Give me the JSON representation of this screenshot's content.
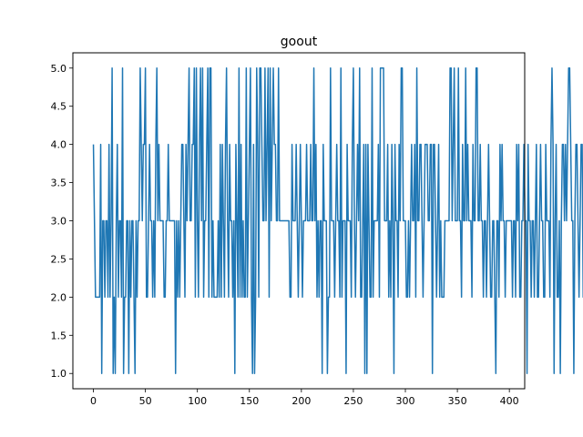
{
  "chart_data": {
    "type": "line",
    "title": "goout",
    "xlabel": "",
    "ylabel": "",
    "xlim": [
      -19.75,
      414.75
    ],
    "ylim": [
      0.8,
      5.2
    ],
    "xticks": [
      0,
      50,
      100,
      150,
      200,
      250,
      300,
      350,
      400
    ],
    "yticks": [
      1.0,
      1.5,
      2.0,
      2.5,
      3.0,
      3.5,
      4.0,
      4.5,
      5.0
    ],
    "ytick_labels": [
      "1.0",
      "1.5",
      "2.0",
      "2.5",
      "3.0",
      "3.5",
      "4.0",
      "4.5",
      "5.0"
    ],
    "grid": false,
    "series": [
      {
        "color": "#1f77b4",
        "values": [
          4,
          3,
          2,
          2,
          2,
          2,
          2,
          4,
          1,
          3,
          3,
          2,
          3,
          3,
          2,
          4,
          2,
          3,
          5,
          1,
          2,
          1,
          3,
          4,
          2,
          3,
          3,
          2,
          5,
          1,
          2,
          2,
          3,
          3,
          1,
          3,
          2,
          3,
          3,
          2,
          1,
          3,
          2,
          3,
          3,
          5,
          4,
          3,
          4,
          4,
          5,
          2,
          2,
          3,
          4,
          3,
          3,
          2,
          3,
          2,
          4,
          5,
          3,
          4,
          3,
          3,
          3,
          3,
          2,
          2,
          3,
          3,
          4,
          3,
          3,
          3,
          3,
          3,
          3,
          1,
          3,
          2,
          3,
          2,
          3,
          4,
          4,
          3,
          2,
          4,
          3,
          4,
          5,
          3,
          3,
          4,
          4,
          5,
          2,
          5,
          3,
          2,
          4,
          5,
          3,
          5,
          2,
          3,
          3,
          4,
          5,
          2,
          5,
          5,
          2,
          3,
          2,
          2,
          2,
          2,
          3,
          2,
          4,
          2,
          4,
          3,
          2,
          4,
          5,
          3,
          2,
          4,
          3,
          3,
          2,
          3,
          1,
          4,
          3,
          2,
          5,
          2,
          4,
          2,
          3,
          2,
          2,
          5,
          2,
          3,
          4,
          5,
          2,
          1,
          4,
          1,
          2,
          5,
          4,
          2,
          5,
          5,
          4,
          3,
          3,
          5,
          3,
          4,
          5,
          2,
          5,
          3,
          4,
          5,
          4,
          4,
          3,
          3,
          5,
          3,
          3,
          3,
          3,
          3,
          3,
          3,
          3,
          3,
          3,
          2,
          2,
          4,
          3,
          3,
          3,
          4,
          3,
          2,
          3,
          4,
          3,
          2,
          3,
          3,
          3,
          4,
          3,
          3,
          3,
          4,
          3,
          3,
          5,
          3,
          4,
          2,
          3,
          2,
          3,
          3,
          1,
          4,
          3,
          3,
          3,
          1,
          2,
          2,
          5,
          3,
          3,
          3,
          2,
          3,
          4,
          3,
          3,
          2,
          5,
          2,
          3,
          3,
          3,
          1,
          4,
          3,
          3,
          3,
          2,
          4,
          5,
          3,
          2,
          3,
          4,
          3,
          5,
          2,
          2,
          3,
          4,
          1,
          4,
          1,
          4,
          3,
          2,
          2,
          5,
          2,
          3,
          3,
          3,
          3,
          4,
          2,
          5,
          5,
          5,
          5,
          3,
          3,
          3,
          4,
          2,
          3,
          2,
          4,
          3,
          1,
          4,
          3,
          3,
          2,
          4,
          3,
          5,
          5,
          3,
          3,
          3,
          2,
          2,
          3,
          2,
          3,
          4,
          3,
          3,
          4,
          2,
          5,
          3,
          3,
          4,
          4,
          3,
          2,
          3,
          4,
          4,
          4,
          3,
          3,
          4,
          4,
          1,
          4,
          4,
          3,
          2,
          3,
          4,
          2,
          3,
          2,
          2,
          2,
          3,
          3,
          3,
          3,
          3,
          5,
          5,
          3,
          4,
          5,
          3,
          3,
          3,
          5,
          3,
          3,
          2,
          4,
          3,
          3,
          5,
          3,
          4,
          3,
          3,
          3,
          2,
          4,
          3,
          3,
          5,
          5,
          3,
          3,
          4,
          3,
          3,
          2,
          3,
          3,
          2,
          3,
          4,
          3,
          2,
          2,
          3,
          3,
          2,
          1,
          3,
          3,
          2,
          4,
          3,
          4,
          3,
          3,
          2,
          3,
          3,
          3,
          3,
          3,
          3,
          2,
          3,
          3,
          2,
          4,
          3,
          4,
          2,
          2,
          3,
          3,
          4,
          3,
          3,
          1,
          4,
          3,
          3,
          2,
          3,
          3,
          2,
          3,
          4,
          2,
          2,
          3,
          4,
          3,
          3,
          2,
          2,
          4,
          3,
          3,
          3,
          2,
          4,
          5,
          4,
          1,
          3,
          4,
          2,
          2,
          3,
          1,
          3,
          4,
          4,
          3,
          4,
          3,
          4,
          5,
          5,
          4,
          3,
          3,
          1,
          3,
          4,
          4,
          3,
          2,
          3,
          4,
          4,
          2,
          3,
          3,
          2,
          3,
          3,
          4,
          5,
          3,
          3,
          5,
          4,
          3,
          3,
          1,
          3,
          4,
          5,
          3,
          4,
          4,
          3
        ]
      }
    ]
  }
}
